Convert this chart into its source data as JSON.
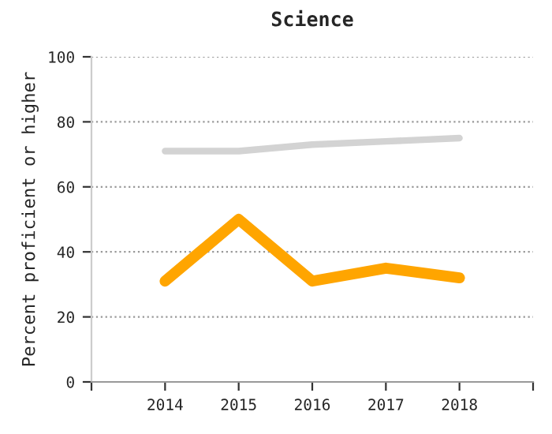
{
  "chart_data": {
    "type": "line",
    "title": "Science",
    "ylabel": "Percent proficient or higher",
    "x": [
      2014,
      2015,
      2016,
      2017,
      2018
    ],
    "series": [
      {
        "color": "#d3d3d3",
        "values": [
          71,
          71,
          73,
          74,
          75
        ]
      },
      {
        "color": "#ffa500",
        "values": [
          31,
          50,
          31,
          35,
          32
        ]
      }
    ],
    "xlim": [
      2013,
      2019
    ],
    "xticks": [
      {
        "value": 2013,
        "label": null
      },
      2014,
      2015,
      2016,
      2017,
      2018,
      {
        "value": 2019,
        "label": null
      }
    ],
    "ylim": [
      0,
      100
    ],
    "yticks": [
      0,
      20,
      40,
      60,
      80,
      100
    ],
    "grid": "y",
    "marker": "none",
    "line_style": "solid"
  }
}
